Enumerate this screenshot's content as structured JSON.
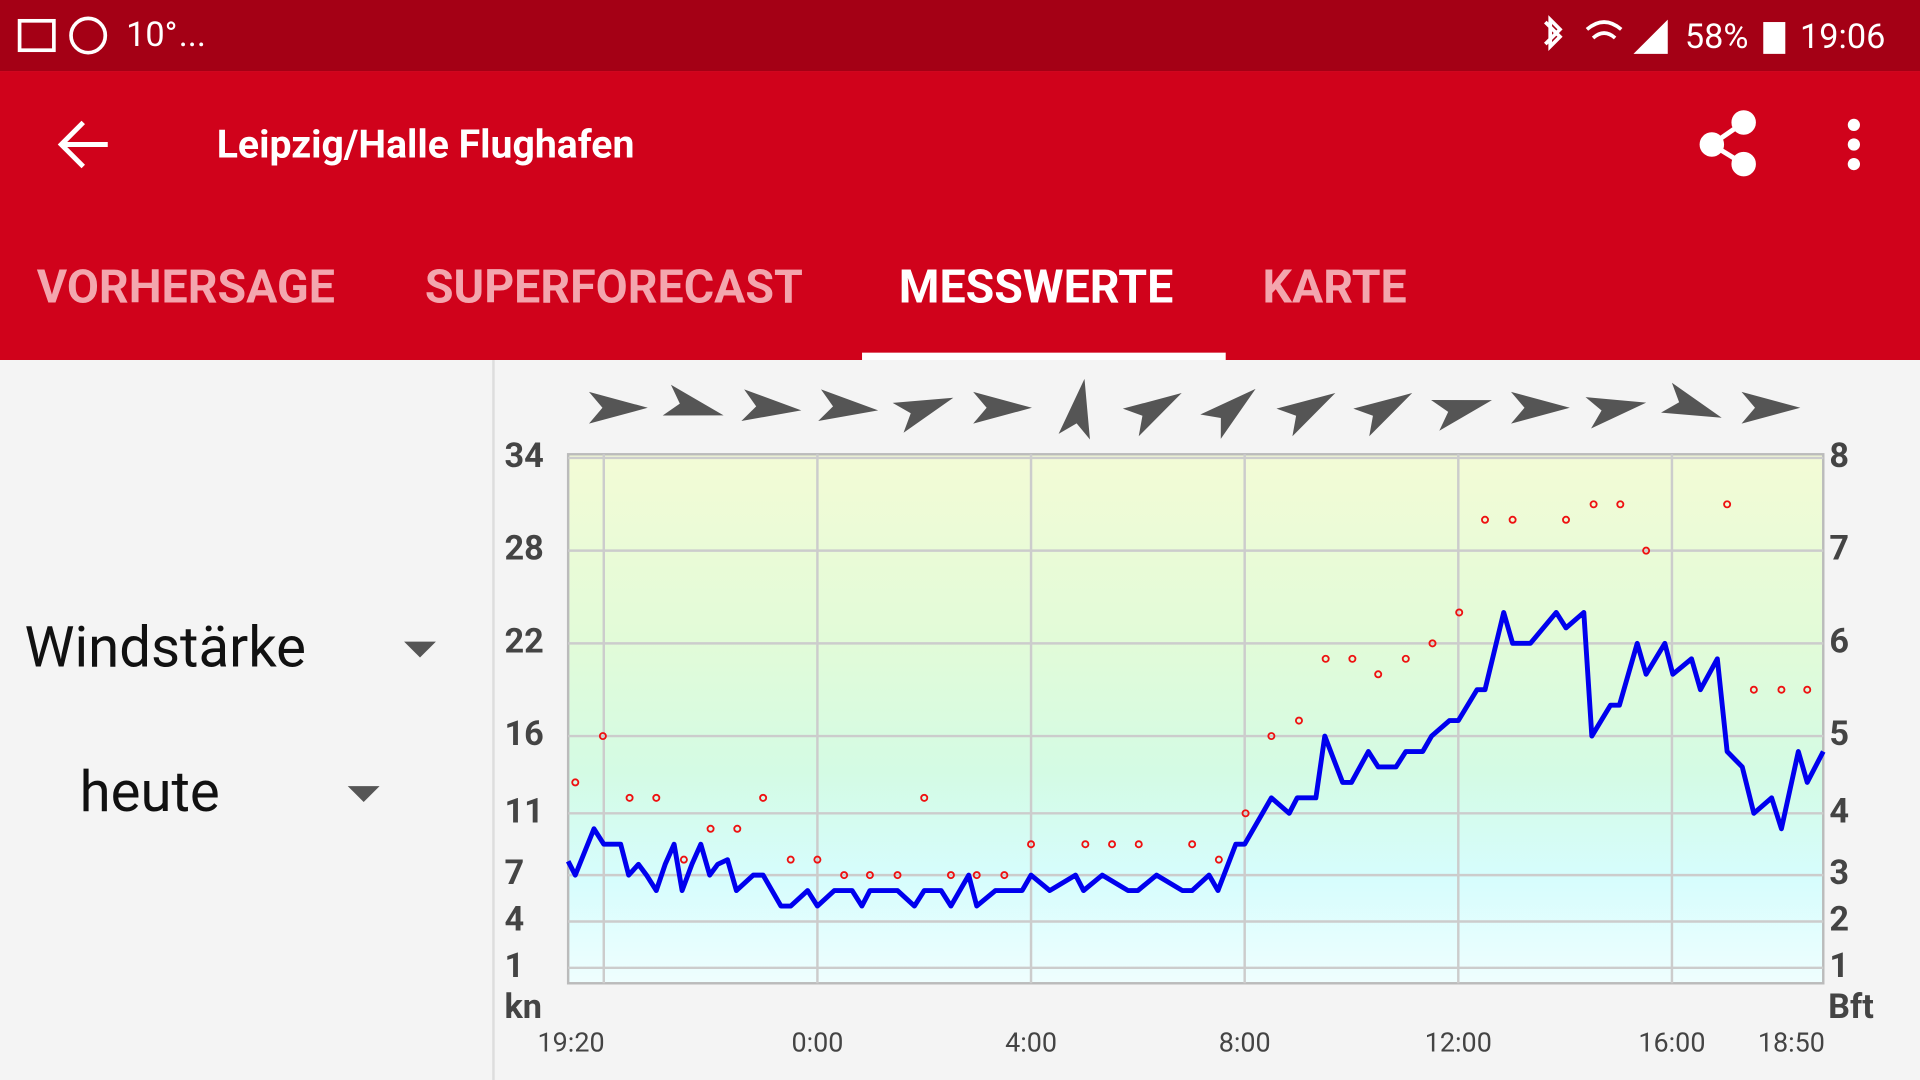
{
  "status_bar": {
    "temperature": "10°",
    "ellipsis": "...",
    "battery": "58%",
    "time": "19:06"
  },
  "app_bar": {
    "title": "Leipzig/Halle Flughafen"
  },
  "tabs": {
    "items": [
      "VORHERSAGE",
      "SUPERFORECAST",
      "MESSWERTE",
      "KARTE"
    ],
    "selected": 2
  },
  "controls": {
    "parameter": "Windstärke",
    "period": "heute"
  },
  "chart_data": {
    "type": "line",
    "y_label": "kn",
    "y2_label": "Bft",
    "xlim": [
      1160,
      2570
    ],
    "xticks": [
      {
        "value": 1160,
        "label": "19:20"
      },
      {
        "value": 1440,
        "label": "0:00"
      },
      {
        "value": 1680,
        "label": "4:00"
      },
      {
        "value": 1920,
        "label": "8:00"
      },
      {
        "value": 2160,
        "label": "12:00"
      },
      {
        "value": 2400,
        "label": "16:00"
      },
      {
        "value": 2570,
        "label": "18:50"
      }
    ],
    "xgrid": [
      1200,
      1440,
      1680,
      1920,
      2160,
      2400
    ],
    "ylim": [
      0,
      34
    ],
    "yticks": [
      1,
      4,
      7,
      11,
      16,
      22,
      28,
      34
    ],
    "y2ticks": [
      1,
      2,
      3,
      4,
      5,
      6,
      7,
      8
    ],
    "grid": true,
    "series": [
      {
        "color": "#0000ee",
        "x": [
          1160,
          1168,
          1189,
          1200,
          1219,
          1228,
          1239,
          1248,
          1259,
          1269,
          1279,
          1288,
          1299,
          1309,
          1319,
          1328,
          1339,
          1349,
          1368,
          1379,
          1399,
          1410,
          1429,
          1440,
          1459,
          1479,
          1490,
          1499,
          1530,
          1549,
          1560,
          1579,
          1590,
          1610,
          1619,
          1640,
          1670,
          1680,
          1701,
          1730,
          1739,
          1760,
          1789,
          1800,
          1821,
          1850,
          1861,
          1880,
          1890,
          1910,
          1920,
          1950,
          1970,
          1979,
          2000,
          2010,
          2030,
          2040,
          2059,
          2070,
          2090,
          2101,
          2120,
          2130,
          2150,
          2160,
          2181,
          2190,
          2211,
          2221,
          2241,
          2270,
          2281,
          2301,
          2310,
          2331,
          2341,
          2361,
          2371,
          2392,
          2401,
          2422,
          2432,
          2451,
          2462,
          2479,
          2492,
          2512,
          2523,
          2542,
          2552,
          2570
        ],
        "values": [
          7.9,
          7,
          10,
          9,
          9,
          7,
          7.7,
          7,
          6,
          7.7,
          9,
          6,
          7.7,
          9,
          7,
          7.7,
          8,
          6,
          7,
          7,
          5,
          5,
          6,
          5,
          6,
          6,
          5,
          6,
          6,
          5,
          6,
          6,
          5,
          7,
          5,
          6,
          6,
          7,
          6,
          7,
          6,
          7,
          6,
          6,
          7,
          6,
          6,
          7,
          6,
          9,
          9,
          12,
          11,
          12,
          12,
          16,
          13,
          13,
          15,
          14,
          14,
          15,
          15,
          16,
          17,
          17,
          19,
          19,
          24,
          22,
          22,
          24,
          23,
          24,
          16,
          18,
          18,
          22,
          20,
          22,
          20,
          21,
          19,
          21,
          15,
          14,
          11,
          12,
          10,
          15,
          13,
          15
        ]
      },
      {
        "color": "#ee1111",
        "marker": "dot",
        "x": [
          1168,
          1199,
          1229,
          1259,
          1290,
          1320,
          1350,
          1379,
          1410,
          1440,
          1470,
          1499,
          1530,
          1560,
          1590,
          1619,
          1650,
          1680,
          1741,
          1771,
          1801,
          1861,
          1891,
          1921,
          1950,
          1981,
          2011,
          2041,
          2070,
          2101,
          2131,
          2161,
          2190,
          2221,
          2281,
          2312,
          2342,
          2371,
          2462,
          2492,
          2523,
          2552
        ],
        "values": [
          13,
          16,
          12,
          12,
          8,
          10,
          10,
          12,
          8,
          8,
          7,
          7,
          7,
          12,
          7,
          7,
          7,
          9,
          9,
          9,
          9,
          9,
          8,
          11,
          16,
          17,
          21,
          21,
          20,
          21,
          22,
          24,
          30,
          30,
          30,
          31,
          31,
          28,
          31,
          19,
          19,
          19
        ]
      }
    ],
    "wind_direction_deg": [
      0,
      15,
      5,
      5,
      -20,
      0,
      -80,
      -30,
      -40,
      -30,
      -30,
      -15,
      0,
      -10,
      20,
      0
    ]
  }
}
